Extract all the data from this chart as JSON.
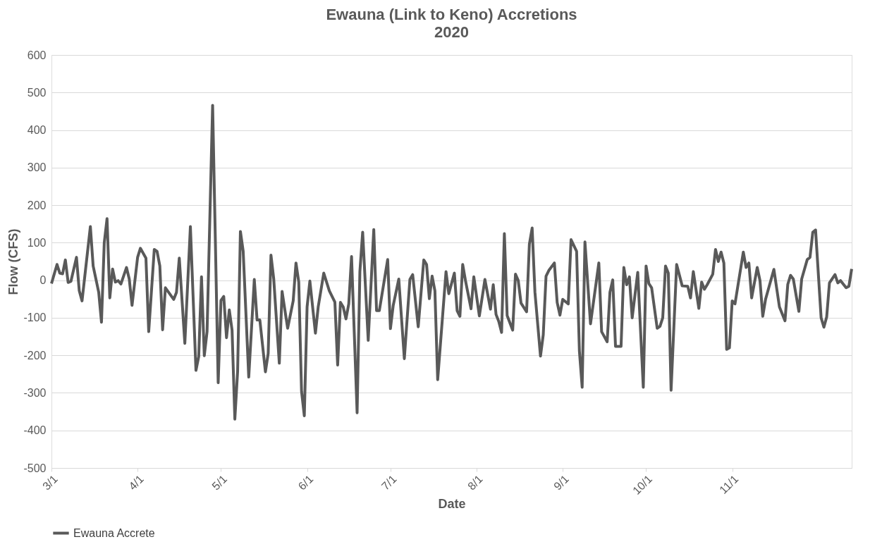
{
  "chart_data": {
    "type": "line",
    "title": "Ewauna (Link to Keno) Accretions",
    "subtitle": "2020",
    "xlabel": "Date",
    "ylabel": "Flow (CFS)",
    "x": [
      "2020-03-01",
      "2020-03-03",
      "2020-03-04",
      "2020-03-05",
      "2020-03-06",
      "2020-03-07",
      "2020-03-08",
      "2020-03-10",
      "2020-03-11",
      "2020-03-12",
      "2020-03-15",
      "2020-03-16",
      "2020-03-18",
      "2020-03-19",
      "2020-03-20",
      "2020-03-21",
      "2020-03-22",
      "2020-03-23",
      "2020-03-24",
      "2020-03-25",
      "2020-03-26",
      "2020-03-28",
      "2020-03-29",
      "2020-03-30",
      "2020-04-01",
      "2020-04-02",
      "2020-04-04",
      "2020-04-05",
      "2020-04-07",
      "2020-04-08",
      "2020-04-09",
      "2020-04-10",
      "2020-04-11",
      "2020-04-14",
      "2020-04-15",
      "2020-04-16",
      "2020-04-18",
      "2020-04-20",
      "2020-04-22",
      "2020-04-23",
      "2020-04-24",
      "2020-04-25",
      "2020-04-26",
      "2020-04-28",
      "2020-04-29",
      "2020-04-30",
      "2020-05-01",
      "2020-05-02",
      "2020-05-03",
      "2020-05-04",
      "2020-05-05",
      "2020-05-06",
      "2020-05-07",
      "2020-05-08",
      "2020-05-09",
      "2020-05-11",
      "2020-05-13",
      "2020-05-14",
      "2020-05-15",
      "2020-05-17",
      "2020-05-18",
      "2020-05-19",
      "2020-05-20",
      "2020-05-22",
      "2020-05-23",
      "2020-05-25",
      "2020-05-27",
      "2020-05-28",
      "2020-05-29",
      "2020-05-30",
      "2020-05-31",
      "2020-06-01",
      "2020-06-02",
      "2020-06-04",
      "2020-06-05",
      "2020-06-07",
      "2020-06-09",
      "2020-06-11",
      "2020-06-12",
      "2020-06-13",
      "2020-06-14",
      "2020-06-15",
      "2020-06-16",
      "2020-06-17",
      "2020-06-19",
      "2020-06-20",
      "2020-06-21",
      "2020-06-23",
      "2020-06-25",
      "2020-06-26",
      "2020-06-27",
      "2020-06-30",
      "2020-07-01",
      "2020-07-02",
      "2020-07-04",
      "2020-07-06",
      "2020-07-08",
      "2020-07-09",
      "2020-07-11",
      "2020-07-13",
      "2020-07-14",
      "2020-07-15",
      "2020-07-16",
      "2020-07-17",
      "2020-07-18",
      "2020-07-21",
      "2020-07-22",
      "2020-07-24",
      "2020-07-25",
      "2020-07-26",
      "2020-07-27",
      "2020-07-28",
      "2020-07-30",
      "2020-07-31",
      "2020-08-02",
      "2020-08-04",
      "2020-08-06",
      "2020-08-07",
      "2020-08-08",
      "2020-08-09",
      "2020-08-10",
      "2020-08-11",
      "2020-08-12",
      "2020-08-14",
      "2020-08-15",
      "2020-08-16",
      "2020-08-17",
      "2020-08-19",
      "2020-08-20",
      "2020-08-21",
      "2020-08-22",
      "2020-08-24",
      "2020-08-25",
      "2020-08-26",
      "2020-08-27",
      "2020-08-29",
      "2020-08-30",
      "2020-08-31",
      "2020-09-01",
      "2020-09-03",
      "2020-09-04",
      "2020-09-06",
      "2020-09-07",
      "2020-09-08",
      "2020-09-09",
      "2020-09-11",
      "2020-09-14",
      "2020-09-15",
      "2020-09-17",
      "2020-09-18",
      "2020-09-19",
      "2020-09-20",
      "2020-09-22",
      "2020-09-23",
      "2020-09-24",
      "2020-09-25",
      "2020-09-26",
      "2020-09-28",
      "2020-09-30",
      "2020-10-01",
      "2020-10-02",
      "2020-10-03",
      "2020-10-05",
      "2020-10-06",
      "2020-10-07",
      "2020-10-08",
      "2020-10-09",
      "2020-10-10",
      "2020-10-12",
      "2020-10-14",
      "2020-10-16",
      "2020-10-17",
      "2020-10-18",
      "2020-10-20",
      "2020-10-21",
      "2020-10-22",
      "2020-10-23",
      "2020-10-25",
      "2020-10-26",
      "2020-10-27",
      "2020-10-28",
      "2020-10-29",
      "2020-10-30",
      "2020-10-31",
      "2020-11-01",
      "2020-11-02",
      "2020-11-05",
      "2020-11-06",
      "2020-11-07",
      "2020-11-08",
      "2020-11-10",
      "2020-11-11",
      "2020-11-12",
      "2020-11-13",
      "2020-11-16",
      "2020-11-18",
      "2020-11-20",
      "2020-11-21",
      "2020-11-22",
      "2020-11-23",
      "2020-11-25",
      "2020-11-26",
      "2020-11-28",
      "2020-11-29",
      "2020-11-30",
      "2020-12-01",
      "2020-12-03",
      "2020-12-04",
      "2020-12-05",
      "2020-12-06",
      "2020-12-08",
      "2020-12-09",
      "2020-12-10",
      "2020-12-12",
      "2020-12-13",
      "2020-12-14"
    ],
    "series": [
      {
        "name": "Ewauna Accrete",
        "color": "#595959",
        "values": [
          -9,
          42,
          19,
          17,
          54,
          -6,
          -3,
          61,
          -28,
          -55,
          143,
          38,
          -32,
          -112,
          100,
          164,
          -47,
          30,
          -5,
          -1,
          -10,
          34,
          3,
          -67,
          61,
          85,
          59,
          -137,
          82,
          77,
          38,
          -132,
          -20,
          -51,
          -32,
          59,
          -168,
          143,
          -240,
          -203,
          9,
          -201,
          -137,
          466,
          100,
          -273,
          -54,
          -43,
          -153,
          -79,
          -133,
          -370,
          -242,
          130,
          77,
          -258,
          2,
          -106,
          -106,
          -244,
          -195,
          67,
          3,
          -221,
          -30,
          -128,
          -55,
          46,
          -5,
          -296,
          -361,
          -71,
          -2,
          -141,
          -71,
          19,
          -28,
          -58,
          -226,
          -59,
          -71,
          -103,
          -63,
          63,
          -353,
          23,
          128,
          -160,
          135,
          -81,
          -81,
          55,
          -129,
          -67,
          3,
          -209,
          2,
          15,
          -124,
          54,
          42,
          -49,
          11,
          -28,
          -265,
          23,
          -36,
          19,
          -81,
          -96,
          42,
          -1,
          -76,
          9,
          -95,
          2,
          -77,
          -12,
          -91,
          -110,
          -139,
          124,
          -94,
          -133,
          16,
          -1,
          -61,
          -84,
          96,
          139,
          -32,
          -202,
          -145,
          11,
          26,
          46,
          -59,
          -93,
          -51,
          -63,
          108,
          77,
          -188,
          -285,
          102,
          -116,
          46,
          -137,
          -164,
          -32,
          1,
          -176,
          -176,
          34,
          -12,
          9,
          -100,
          21,
          -285,
          38,
          -9,
          -20,
          -128,
          -123,
          -100,
          38,
          19,
          -293,
          42,
          -15,
          -16,
          -47,
          23,
          -75,
          -5,
          -24,
          -12,
          16,
          82,
          50,
          75,
          46,
          -184,
          -180,
          -55,
          -63,
          75,
          34,
          46,
          -47,
          34,
          -1,
          -96,
          -51,
          29,
          -71,
          -108,
          -11,
          13,
          3,
          -83,
          3,
          55,
          61,
          128,
          134,
          -100,
          -125,
          -98,
          -7,
          15,
          -7,
          -1,
          -20,
          -16,
          30
        ]
      }
    ],
    "xlim": [
      "2020-03-01",
      "2020-12-14"
    ],
    "xticks": [
      {
        "value": "2020-03-01",
        "label": "3/1"
      },
      {
        "value": "2020-04-01",
        "label": "4/1"
      },
      {
        "value": "2020-05-01",
        "label": "5/1"
      },
      {
        "value": "2020-06-01",
        "label": "6/1"
      },
      {
        "value": "2020-07-01",
        "label": "7/1"
      },
      {
        "value": "2020-08-01",
        "label": "8/1"
      },
      {
        "value": "2020-09-01",
        "label": "9/1"
      },
      {
        "value": "2020-10-01",
        "label": "10/1"
      },
      {
        "value": "2020-11-01",
        "label": "11/1"
      }
    ],
    "ylim": [
      -500,
      600
    ],
    "yticks": [
      -500,
      -400,
      -300,
      -200,
      -100,
      0,
      100,
      200,
      300,
      400,
      500,
      600
    ],
    "grid": "y",
    "legend": "bottom",
    "marker": "none",
    "line_style": "solid"
  }
}
